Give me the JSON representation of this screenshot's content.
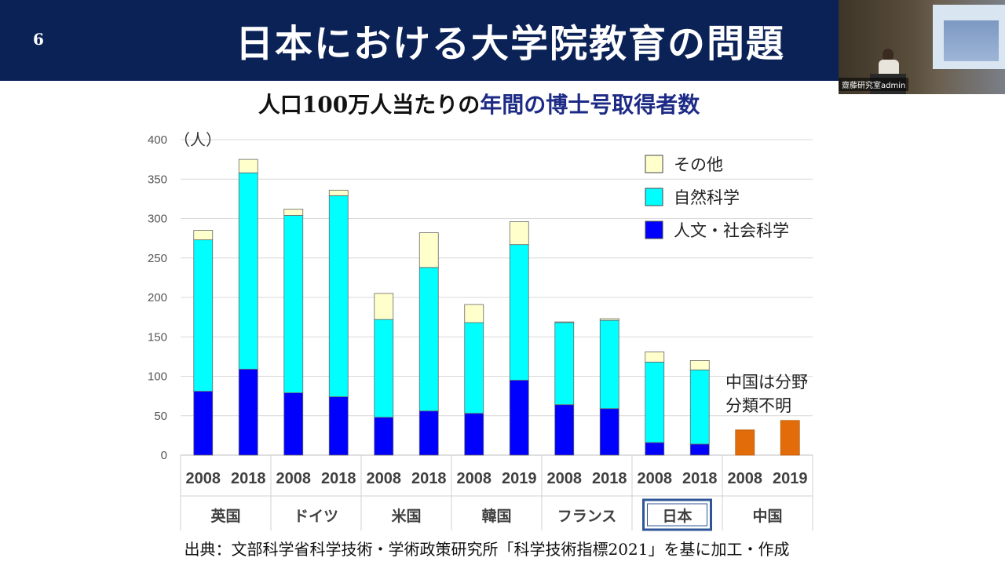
{
  "slide": {
    "number": "6",
    "title": "日本における大学院教育の問題"
  },
  "webcam": {
    "label": "齋藤研究室admin"
  },
  "chart_title": {
    "main": "人口100万人当たりの",
    "accent": "年間の博士号取得者数"
  },
  "footer": "出典：文部科学省科学技術・学術政策研究所「科学技術指標2021」を基に加工・作成",
  "colors": {
    "header_bg": "#0b2257",
    "title_accent": "#1d2b86",
    "other": "#ffffcc",
    "natural": "#00ffff",
    "humanities": "#0000ff",
    "china": "#e36c0a",
    "japan_highlight": "#2f5597"
  },
  "chart_data": {
    "type": "bar",
    "stacked": true,
    "y_unit": "（人）",
    "ylim": [
      0,
      400
    ],
    "yticks": [
      0,
      50,
      100,
      150,
      200,
      250,
      300,
      350,
      400
    ],
    "grid": true,
    "legend_position": "top-right",
    "legend": [
      {
        "key": "other",
        "label": "その他",
        "color": "#ffffcc"
      },
      {
        "key": "natural",
        "label": "自然科学",
        "color": "#00ffff"
      },
      {
        "key": "humanities",
        "label": "人文・社会科学",
        "color": "#0000ff"
      }
    ],
    "groups": [
      {
        "country": "英国",
        "highlight": false,
        "bars": [
          {
            "year": "2008",
            "humanities": 81,
            "natural": 192,
            "other": 12
          },
          {
            "year": "2018",
            "humanities": 109,
            "natural": 249,
            "other": 17
          }
        ]
      },
      {
        "country": "ドイツ",
        "highlight": false,
        "bars": [
          {
            "year": "2008",
            "humanities": 79,
            "natural": 225,
            "other": 8
          },
          {
            "year": "2018",
            "humanities": 74,
            "natural": 255,
            "other": 7
          }
        ]
      },
      {
        "country": "米国",
        "highlight": false,
        "bars": [
          {
            "year": "2008",
            "humanities": 48,
            "natural": 124,
            "other": 33
          },
          {
            "year": "2018",
            "humanities": 56,
            "natural": 182,
            "other": 44
          }
        ]
      },
      {
        "country": "韓国",
        "highlight": false,
        "bars": [
          {
            "year": "2008",
            "humanities": 53,
            "natural": 115,
            "other": 23
          },
          {
            "year": "2019",
            "humanities": 95,
            "natural": 172,
            "other": 29
          }
        ]
      },
      {
        "country": "フランス",
        "highlight": false,
        "bars": [
          {
            "year": "2008",
            "humanities": 64,
            "natural": 104,
            "other": 1
          },
          {
            "year": "2018",
            "humanities": 59,
            "natural": 112,
            "other": 2
          }
        ]
      },
      {
        "country": "日本",
        "highlight": true,
        "bars": [
          {
            "year": "2008",
            "humanities": 16,
            "natural": 102,
            "other": 13
          },
          {
            "year": "2018",
            "humanities": 14,
            "natural": 94,
            "other": 12
          }
        ]
      },
      {
        "country": "中国",
        "highlight": false,
        "bars": [
          {
            "year": "2008",
            "total": 32
          },
          {
            "year": "2019",
            "total": 44
          }
        ]
      }
    ],
    "annotation": [
      "中国は分野",
      "分類不明"
    ]
  }
}
